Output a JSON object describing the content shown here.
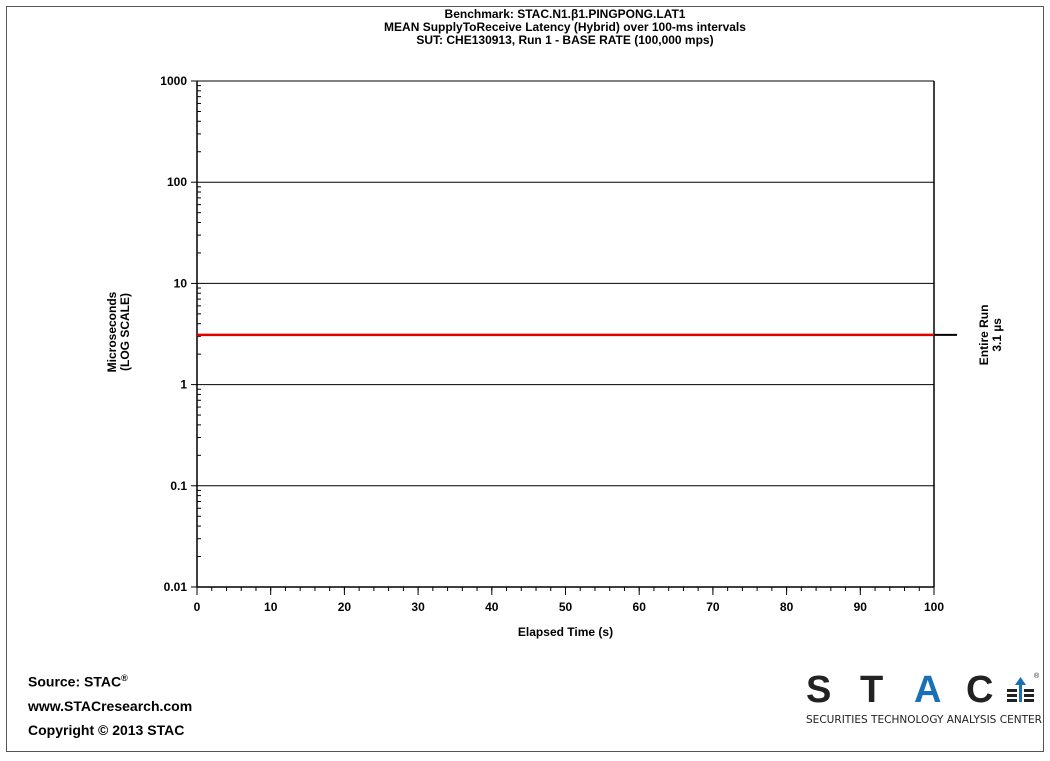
{
  "chart_data": {
    "type": "line",
    "title": [
      "Benchmark: STAC.N1.β1.PINGPONG.LAT1",
      "MEAN SupplyToReceive Latency (Hybrid) over 100-ms intervals",
      "SUT: CHE130913, Run 1 - BASE RATE (100,000 mps)"
    ],
    "xlabel": "Elapsed Time (s)",
    "ylabel": [
      "Microseconds",
      "(LOG SCALE)"
    ],
    "y_scale": "log",
    "xlim": [
      0,
      100
    ],
    "ylim": [
      0.01,
      1000
    ],
    "x_ticks": [
      0,
      10,
      20,
      30,
      40,
      50,
      60,
      70,
      80,
      90,
      100
    ],
    "y_ticks": [
      0.01,
      0.1,
      1,
      10,
      100,
      1000
    ],
    "y_tick_labels": [
      "0.01",
      "0.1",
      "1",
      "10",
      "100",
      "1000"
    ],
    "x_tick_labels": [
      "0",
      "10",
      "20",
      "30",
      "40",
      "50",
      "60",
      "70",
      "80",
      "90",
      "100"
    ],
    "grid": "horizontal",
    "series": [
      {
        "color": "#e00000",
        "x": [
          0,
          100
        ],
        "y": [
          3.1,
          3.1
        ]
      }
    ],
    "annotation": {
      "label": [
        "Entire Run",
        "3.1 µs"
      ],
      "value": 3.1
    }
  },
  "source": {
    "line1": "Source: STAC",
    "reg": "®",
    "line2": "www.STACresearch.com",
    "line3": "Copyright © 2013 STAC"
  },
  "logo": {
    "letters": [
      "S",
      "T",
      "A",
      "C"
    ],
    "reg": "®",
    "tagline": "SECURITIES TECHNOLOGY ANALYSIS CENTER",
    "accent": "#1a6fb5"
  }
}
